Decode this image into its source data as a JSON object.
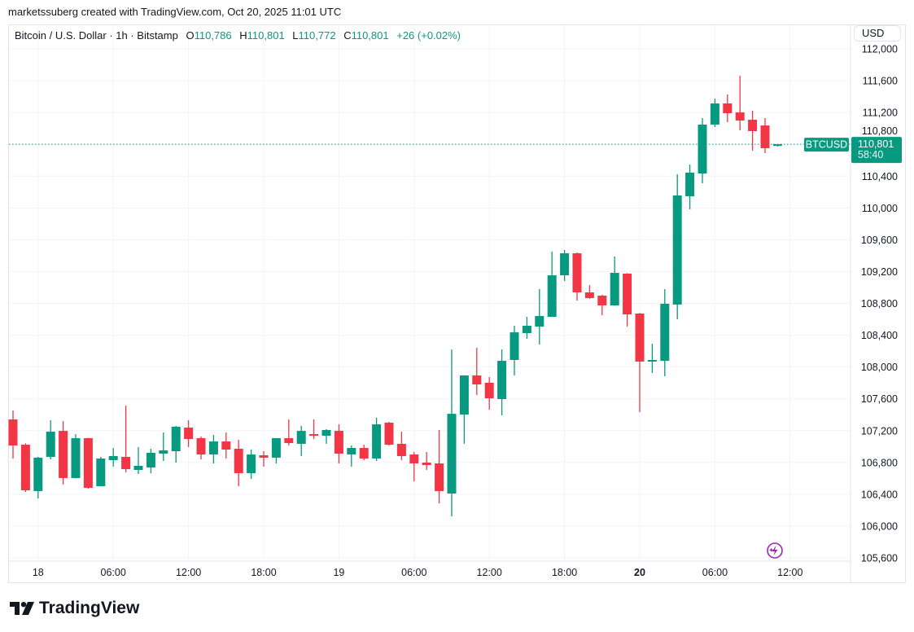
{
  "caption": "marketssuberg created with TradingView.com, Oct 20, 2025 11:01 UTC",
  "legend": {
    "symbol": "Bitcoin / U.S. Dollar · 1h · Bitstamp",
    "o_label": "O",
    "o": "110,786",
    "h_label": "H",
    "h": "110,801",
    "l_label": "L",
    "l": "110,772",
    "c_label": "C",
    "c": "110,801",
    "change": "+26 (+0.02%)"
  },
  "currency_button": "USD",
  "last_price": {
    "ticker": "BTCUSD",
    "price": "110,801",
    "countdown": "58:40"
  },
  "branding": "TradingView",
  "colors": {
    "up": "#089981",
    "down": "#f23645",
    "grid": "#f0f3fa",
    "text": "#131722",
    "alert_icon": "#9c27b0"
  },
  "chart_data": {
    "type": "candlestick",
    "title": "Bitcoin / U.S. Dollar · 1h · Bitstamp",
    "interval": "1h",
    "start": "2025-10-17 22:00",
    "ylim": [
      105600,
      112000
    ],
    "grid": true,
    "y_ticks": [
      "105,600",
      "106,000",
      "106,400",
      "106,800",
      "107,200",
      "107,600",
      "108,000",
      "108,400",
      "108,800",
      "109,200",
      "109,600",
      "110,000",
      "110,400",
      "110,800",
      "111,200",
      "111,600",
      "112,000"
    ],
    "x_ticks": [
      {
        "label": "18",
        "time": "2025-10-18 00:00",
        "bold": false
      },
      {
        "label": "06:00",
        "time": "2025-10-18 06:00",
        "bold": false
      },
      {
        "label": "12:00",
        "time": "2025-10-18 12:00",
        "bold": false
      },
      {
        "label": "18:00",
        "time": "2025-10-18 18:00",
        "bold": false
      },
      {
        "label": "19",
        "time": "2025-10-19 00:00",
        "bold": false
      },
      {
        "label": "06:00",
        "time": "2025-10-19 06:00",
        "bold": false
      },
      {
        "label": "12:00",
        "time": "2025-10-19 12:00",
        "bold": false
      },
      {
        "label": "18:00",
        "time": "2025-10-19 18:00",
        "bold": false
      },
      {
        "label": "20",
        "time": "2025-10-20 00:00",
        "bold": true
      },
      {
        "label": "06:00",
        "time": "2025-10-20 06:00",
        "bold": false
      },
      {
        "label": "12:00",
        "time": "2025-10-20 12:00",
        "bold": false
      }
    ],
    "ohlc": [
      [
        107341,
        107453,
        106849,
        107013
      ],
      [
        107023,
        107040,
        106429,
        106450
      ],
      [
        106440,
        106870,
        106348,
        106860
      ],
      [
        106870,
        107331,
        106839,
        107187
      ],
      [
        107197,
        107320,
        106522,
        106604
      ],
      [
        106604,
        107156,
        106600,
        107105
      ],
      [
        107105,
        107110,
        106470,
        106481
      ],
      [
        106501,
        106870,
        106500,
        106849
      ],
      [
        106829,
        106982,
        106747,
        106880
      ],
      [
        106870,
        107515,
        106675,
        106716
      ],
      [
        106706,
        106993,
        106655,
        106757
      ],
      [
        106737,
        106972,
        106665,
        106921
      ],
      [
        106911,
        107177,
        106819,
        106952
      ],
      [
        106941,
        107260,
        106798,
        107249
      ],
      [
        107238,
        107331,
        106993,
        107095
      ],
      [
        107105,
        107126,
        106839,
        106900
      ],
      [
        106900,
        107146,
        106788,
        107064
      ],
      [
        107064,
        107177,
        106849,
        106962
      ],
      [
        106972,
        107085,
        106501,
        106665
      ],
      [
        106665,
        106962,
        106593,
        106900
      ],
      [
        106890,
        106941,
        106747,
        106860
      ],
      [
        106860,
        107105,
        106788,
        107105
      ],
      [
        107105,
        107341,
        107013,
        107044
      ],
      [
        107034,
        107259,
        106880,
        107197
      ],
      [
        107156,
        107341,
        107095,
        107136
      ],
      [
        107136,
        107218,
        107034,
        107208
      ],
      [
        107197,
        107279,
        106788,
        106911
      ],
      [
        106900,
        107013,
        106747,
        106982
      ],
      [
        106982,
        107023,
        106829,
        106849
      ],
      [
        106849,
        107361,
        106819,
        107279
      ],
      [
        107300,
        107310,
        107013,
        107023
      ],
      [
        107034,
        107187,
        106829,
        106880
      ],
      [
        106900,
        106931,
        106563,
        106788
      ],
      [
        106798,
        106931,
        106706,
        106767
      ],
      [
        106788,
        107208,
        106286,
        106440
      ],
      [
        106409,
        108221,
        106122,
        107412
      ],
      [
        107402,
        107894,
        107034,
        107894
      ],
      [
        107894,
        108242,
        107648,
        107781
      ],
      [
        107802,
        107873,
        107464,
        107607
      ],
      [
        107597,
        108221,
        107392,
        108078
      ],
      [
        108088,
        108518,
        107894,
        108436
      ],
      [
        108426,
        108631,
        108355,
        108518
      ],
      [
        108508,
        108979,
        108283,
        108641
      ],
      [
        108631,
        109450,
        108630,
        109153
      ],
      [
        109153,
        109471,
        109082,
        109430
      ],
      [
        109430,
        109440,
        108836,
        108938
      ],
      [
        108938,
        109030,
        108856,
        108867
      ],
      [
        108897,
        108908,
        108652,
        108774
      ],
      [
        108774,
        109389,
        108770,
        109184
      ],
      [
        109174,
        109180,
        108508,
        108662
      ],
      [
        108672,
        108680,
        107433,
        108068
      ],
      [
        108068,
        108293,
        107924,
        108088
      ],
      [
        108078,
        108979,
        107884,
        108795
      ],
      [
        108785,
        110423,
        108600,
        110157
      ],
      [
        110147,
        110546,
        109983,
        110444
      ],
      [
        110433,
        111130,
        110310,
        111048
      ],
      [
        111048,
        111375,
        111017,
        111314
      ],
      [
        111314,
        111427,
        111078,
        111191
      ],
      [
        111201,
        111662,
        110976,
        111099
      ],
      [
        111109,
        111222,
        110720,
        110966
      ],
      [
        111037,
        111130,
        110689,
        110751
      ],
      [
        110786,
        110801,
        110772,
        110801
      ]
    ],
    "last_value": 110801
  }
}
